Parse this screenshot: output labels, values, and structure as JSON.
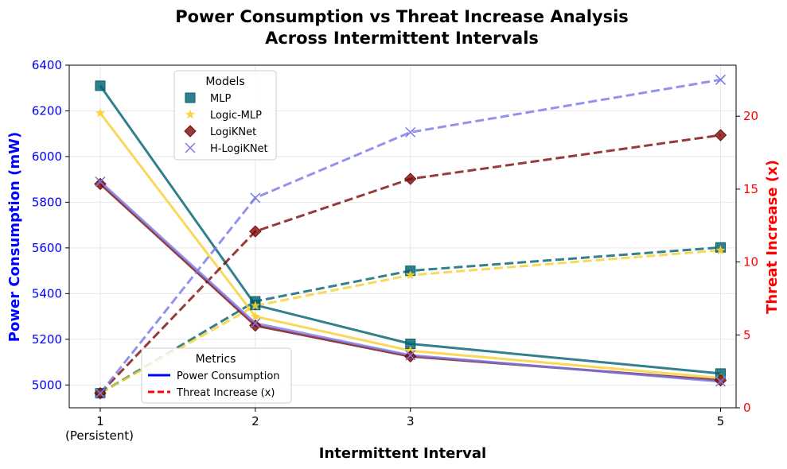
{
  "chart_data": {
    "type": "line",
    "title_line1": "Power Consumption vs Threat Increase Analysis",
    "title_line2": "Across Intermittent Intervals",
    "xlabel": "Intermittent Interval",
    "ylabel_left": "Power Consumption (mW)",
    "ylabel_right": "Threat Increase (x)",
    "x": [
      1,
      2,
      3,
      5
    ],
    "x_tick_labels": [
      "1",
      "2",
      "3",
      "5"
    ],
    "x_tick_sublabel": "(Persistent)",
    "xlim": [
      0.8,
      5.1
    ],
    "ylim_left": [
      4900,
      6400
    ],
    "ylim_right": [
      0,
      23.5
    ],
    "y_ticks_left": [
      5000,
      5200,
      5400,
      5600,
      5800,
      6000,
      6200,
      6400
    ],
    "y_ticks_right": [
      0,
      5,
      10,
      15,
      20
    ],
    "grid": true,
    "left_axis_color": "#0000ff",
    "right_axis_color": "#ff0000",
    "series": [
      {
        "name": "MLP",
        "color": "#006070",
        "marker": "square",
        "power": [
          6310,
          5350,
          5180,
          5050
        ],
        "threat": [
          1.0,
          7.3,
          9.4,
          11.0
        ]
      },
      {
        "name": "Logic-MLP",
        "color": "#f8d030",
        "marker": "star",
        "power": [
          6190,
          5300,
          5150,
          5030
        ],
        "threat": [
          1.0,
          7.0,
          9.1,
          10.8
        ]
      },
      {
        "name": "LogiKNet",
        "color": "#7a0a0a",
        "marker": "diamond",
        "power": [
          5880,
          5260,
          5125,
          5020
        ],
        "threat": [
          1.0,
          12.1,
          15.7,
          18.7
        ]
      },
      {
        "name": "H-LogiKNet",
        "color": "#7878e8",
        "marker": "x",
        "power": [
          5890,
          5270,
          5130,
          5015
        ],
        "threat": [
          1.0,
          14.4,
          18.9,
          22.5
        ]
      }
    ],
    "legend_models": {
      "title": "Models",
      "placement": "upper-left"
    },
    "legend_metrics": {
      "title": "Metrics",
      "placement": "lower-left",
      "items": [
        {
          "label": "Power Consumption",
          "color": "#0000ff",
          "style": "solid"
        },
        {
          "label": "Threat Increase (x)",
          "color": "#ff0000",
          "style": "dashed"
        }
      ]
    }
  }
}
